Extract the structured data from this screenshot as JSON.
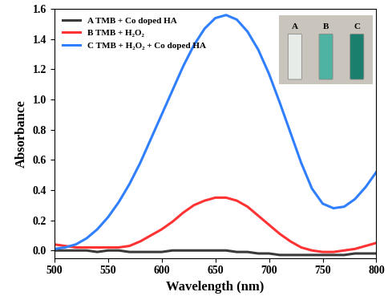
{
  "chart_data": {
    "type": "line",
    "x_label": "Wavelength (nm)",
    "y_label": "Absorbance",
    "x": [
      500,
      510,
      520,
      530,
      540,
      550,
      560,
      570,
      580,
      590,
      600,
      610,
      620,
      630,
      640,
      650,
      660,
      670,
      680,
      690,
      700,
      710,
      720,
      730,
      740,
      750,
      760,
      770,
      780,
      790,
      800
    ],
    "series": [
      {
        "name": "A TMB + Co doped HA",
        "color": "#3a3a3a",
        "values": [
          0.0,
          0.0,
          0.0,
          0.0,
          -0.01,
          0.0,
          0.0,
          -0.01,
          -0.01,
          -0.01,
          -0.01,
          0.0,
          0.0,
          0.0,
          0.0,
          0.0,
          0.0,
          -0.01,
          -0.01,
          -0.02,
          -0.02,
          -0.03,
          -0.03,
          -0.03,
          -0.03,
          -0.03,
          -0.03,
          -0.03,
          -0.02,
          -0.02,
          -0.02
        ]
      },
      {
        "name": "B TMB + H₂O₂",
        "color": "#ff3333",
        "values": [
          0.04,
          0.03,
          0.02,
          0.02,
          0.02,
          0.02,
          0.02,
          0.03,
          0.06,
          0.1,
          0.14,
          0.19,
          0.25,
          0.3,
          0.33,
          0.35,
          0.35,
          0.33,
          0.29,
          0.23,
          0.17,
          0.11,
          0.06,
          0.02,
          0.0,
          -0.01,
          -0.01,
          0.0,
          0.01,
          0.03,
          0.05
        ]
      },
      {
        "name": "C TMB + H₂O₂ + Co doped HA",
        "color": "#2f7fff",
        "values": [
          0.01,
          0.02,
          0.04,
          0.08,
          0.14,
          0.22,
          0.32,
          0.44,
          0.58,
          0.74,
          0.9,
          1.06,
          1.22,
          1.36,
          1.47,
          1.54,
          1.56,
          1.53,
          1.45,
          1.33,
          1.17,
          0.98,
          0.78,
          0.58,
          0.41,
          0.31,
          0.28,
          0.29,
          0.34,
          0.42,
          0.52
        ]
      }
    ],
    "xlim": [
      500,
      800
    ],
    "xticks": [
      500,
      550,
      600,
      650,
      700,
      750,
      800
    ],
    "ylim": [
      -0.05,
      1.6
    ],
    "yticks": [
      {
        "value": 0.0,
        "label": "0.0"
      },
      {
        "value": 0.2,
        "label": "0.2"
      },
      {
        "value": 0.4,
        "label": "0.4"
      },
      {
        "value": 0.6,
        "label": "0.6"
      },
      {
        "value": 0.8,
        "label": "0.8"
      },
      {
        "value": 1.0,
        "label": "1.0"
      },
      {
        "value": 1.2,
        "label": "1.2"
      },
      {
        "value": 1.4,
        "label": "1.4"
      },
      {
        "value": 1.6,
        "label": "1.6"
      }
    ],
    "legend": "upper left",
    "grid": false,
    "annotations": [
      "A",
      "B",
      "C"
    ]
  }
}
